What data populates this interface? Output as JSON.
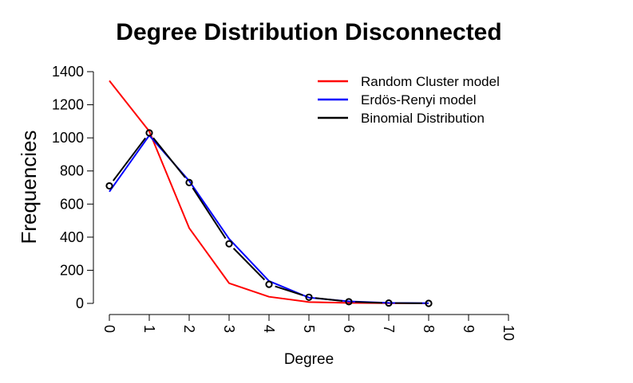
{
  "chart_data": {
    "type": "line",
    "title": "Degree Distribution Disconnected",
    "xlabel": "Degree",
    "ylabel": "Frequencies",
    "xlim": [
      0,
      10
    ],
    "ylim": [
      0,
      1400
    ],
    "x_ticks": [
      "0",
      "1",
      "2",
      "3",
      "4",
      "5",
      "6",
      "7",
      "8",
      "9",
      "10"
    ],
    "y_ticks": [
      "0",
      "200",
      "400",
      "600",
      "800",
      "1000",
      "1200",
      "1400"
    ],
    "grid": false,
    "legend_position": "top-right",
    "series": [
      {
        "name": "Random Cluster model",
        "color": "#ff0000",
        "style": "line",
        "x": [
          0,
          1,
          2,
          3,
          4,
          5,
          6,
          7,
          8
        ],
        "y": [
          1345,
          1040,
          455,
          122,
          40,
          8,
          3,
          1,
          0
        ]
      },
      {
        "name": "Erdös-Renyi model",
        "color": "#0000ff",
        "style": "line",
        "x": [
          0,
          1,
          2,
          3,
          4,
          5,
          6,
          7,
          8
        ],
        "y": [
          675,
          1015,
          740,
          390,
          135,
          35,
          12,
          3,
          1
        ]
      },
      {
        "name": "Binomial Distribution",
        "color": "#000000",
        "style": "points-and-lines",
        "x": [
          0,
          1,
          2,
          3,
          4,
          5,
          6,
          7,
          8
        ],
        "y": [
          710,
          1030,
          730,
          360,
          115,
          37,
          10,
          2,
          0
        ]
      }
    ]
  }
}
